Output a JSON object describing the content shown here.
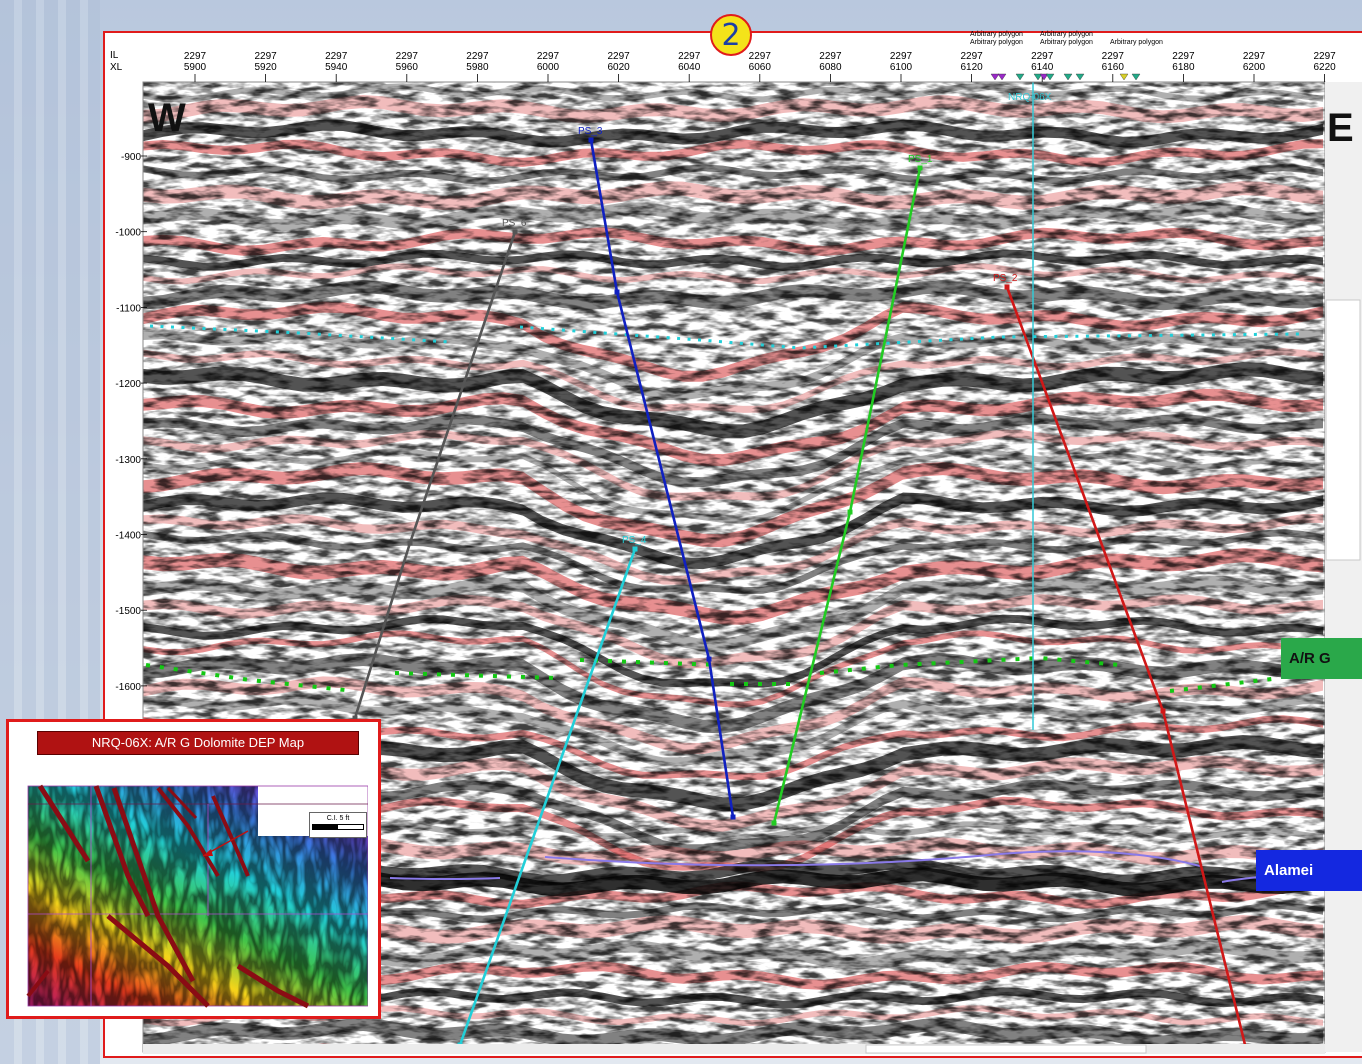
{
  "badge_number": "2",
  "west_label": "W",
  "east_label": "E",
  "axis": {
    "il_label": "IL",
    "xl_label": "XL",
    "il_value": "2297",
    "xl_ticks": [
      "5900",
      "5920",
      "5940",
      "5960",
      "5980",
      "6000",
      "6020",
      "6040",
      "6060",
      "6080",
      "6100",
      "6120",
      "6140",
      "6160",
      "6180",
      "6200",
      "6220"
    ],
    "depth_ticks": [
      "-900",
      "-1000",
      "-1100",
      "-1200",
      "-1300",
      "-1400",
      "-1500",
      "-1600"
    ]
  },
  "arbitrary_polygon_label": "Arbitrary polygon",
  "well_label": "NRQ-06X",
  "faults": [
    {
      "name": "PS_3",
      "color": "#1020c0"
    },
    {
      "name": "PS_1",
      "color": "#22cc22"
    },
    {
      "name": "PS_6",
      "color": "#555555"
    },
    {
      "name": "PS_2",
      "color": "#d01818"
    },
    {
      "name": "PS_4",
      "color": "#22cfd8"
    }
  ],
  "horizon_tags": {
    "ar_g": {
      "text": "A/R G",
      "color": "#2aa84a"
    },
    "alamein": {
      "text": "Alamei",
      "color": "#1428e0"
    }
  },
  "inset": {
    "title": "NRQ-06X: A/R G Dolomite DEP Map",
    "legend_ci": "C.I. 5 ft"
  }
}
